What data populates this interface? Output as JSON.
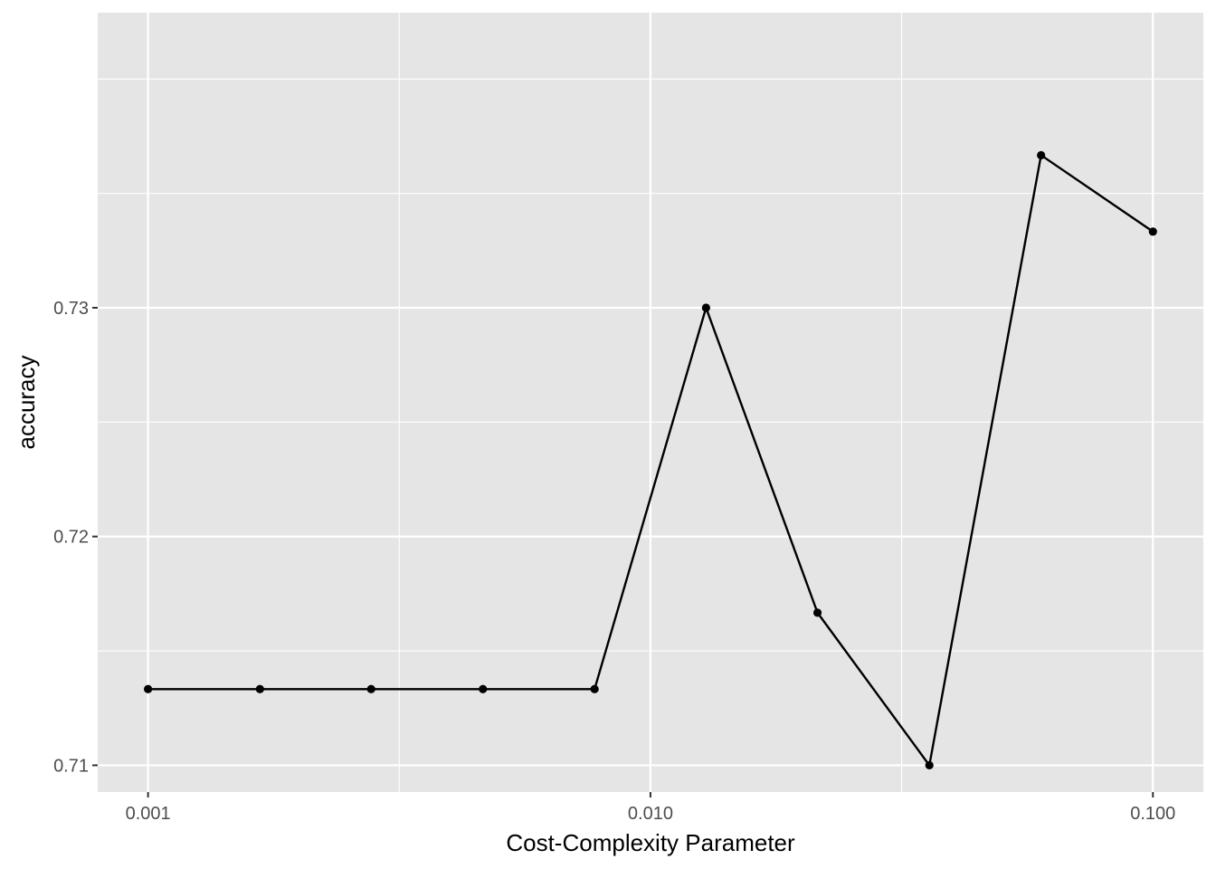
{
  "chart_data": {
    "type": "line",
    "title": "",
    "xlabel": "Cost-Complexity Parameter",
    "ylabel": "accuracy",
    "x_scale": "log10",
    "xlim": [
      0.000794,
      0.126
    ],
    "ylim": [
      0.70883,
      0.7429
    ],
    "x_ticks": [
      {
        "value": 0.001,
        "label": "0.001"
      },
      {
        "value": 0.01,
        "label": "0.010"
      },
      {
        "value": 0.1,
        "label": "0.100"
      }
    ],
    "x_minor_ticks": [
      0.003162,
      0.031623
    ],
    "y_ticks": [
      {
        "value": 0.71,
        "label": "0.71"
      },
      {
        "value": 0.72,
        "label": "0.72"
      },
      {
        "value": 0.73,
        "label": "0.73"
      }
    ],
    "y_minor_ticks": [
      0.715,
      0.725,
      0.735,
      0.74
    ],
    "grid": true,
    "point_markers": true,
    "series": [
      {
        "x": [
          0.001,
          0.00167,
          0.00278,
          0.00464,
          0.00774,
          0.0129,
          0.0215,
          0.0359,
          0.0599,
          0.1
        ],
        "y": [
          0.71333,
          0.71333,
          0.71333,
          0.71333,
          0.71333,
          0.73,
          0.71667,
          0.71,
          0.73667,
          0.73333
        ]
      }
    ],
    "colors": {
      "panel_background": "#e5e5e5",
      "grid": "#ffffff",
      "line": "#000000",
      "point": "#000000",
      "tick_label": "#4d4d4d",
      "axis_title": "#000000"
    }
  }
}
